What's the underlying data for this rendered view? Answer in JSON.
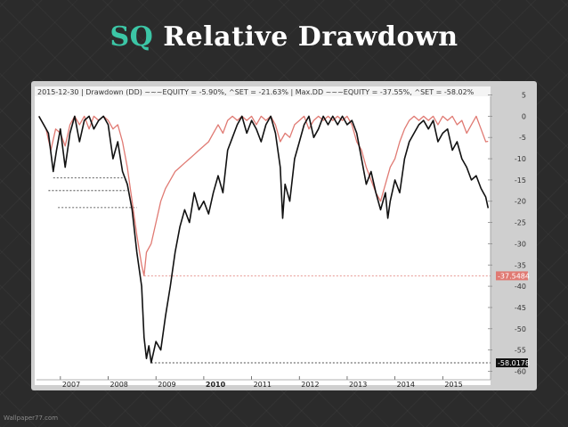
{
  "slide": {
    "title_ticker": "SQ",
    "title_rest": "Relative Drawdown",
    "title_color": "#3cc6a6",
    "watermark": "Wallpaper77.com"
  },
  "chart_data": {
    "type": "line",
    "header": "2015-12-30  |  Drawdown (DD) ~~~EQUITY = -5.90%, ^SET = -21.63%  |  Max.DD ~~~EQUITY = -37.55%, ^SET = -58.02%",
    "x_tick_labels": [
      "2007",
      "2008",
      "2009",
      "2010",
      "2011",
      "2012",
      "2013",
      "2014",
      "2015"
    ],
    "bold_tick": "2010",
    "ylim": [
      -62,
      7
    ],
    "y_ticks": [
      5,
      0,
      -5,
      -10,
      -15,
      -20,
      -25,
      -30,
      -35,
      -40,
      -45,
      -50,
      -55,
      -60
    ],
    "series": [
      {
        "key": "set",
        "color": "#111111",
        "points": [
          [
            2006.55,
            0
          ],
          [
            2006.65,
            -2
          ],
          [
            2006.75,
            -4
          ],
          [
            2006.85,
            -13
          ],
          [
            2006.92,
            -8
          ],
          [
            2007.0,
            -3
          ],
          [
            2007.1,
            -12
          ],
          [
            2007.2,
            -4
          ],
          [
            2007.3,
            0
          ],
          [
            2007.4,
            -6
          ],
          [
            2007.5,
            -1
          ],
          [
            2007.6,
            0
          ],
          [
            2007.7,
            -3
          ],
          [
            2007.8,
            -1
          ],
          [
            2007.9,
            0
          ],
          [
            2008.0,
            -2
          ],
          [
            2008.1,
            -10
          ],
          [
            2008.2,
            -6
          ],
          [
            2008.3,
            -13
          ],
          [
            2008.4,
            -16
          ],
          [
            2008.5,
            -22
          ],
          [
            2008.6,
            -32
          ],
          [
            2008.7,
            -40
          ],
          [
            2008.75,
            -52
          ],
          [
            2008.8,
            -57
          ],
          [
            2008.85,
            -54
          ],
          [
            2008.9,
            -58
          ],
          [
            2009.0,
            -53
          ],
          [
            2009.1,
            -55
          ],
          [
            2009.2,
            -47
          ],
          [
            2009.3,
            -40
          ],
          [
            2009.4,
            -32
          ],
          [
            2009.5,
            -26
          ],
          [
            2009.6,
            -22
          ],
          [
            2009.7,
            -25
          ],
          [
            2009.8,
            -18
          ],
          [
            2009.9,
            -22
          ],
          [
            2010.0,
            -20
          ],
          [
            2010.1,
            -23
          ],
          [
            2010.2,
            -18
          ],
          [
            2010.3,
            -14
          ],
          [
            2010.4,
            -18
          ],
          [
            2010.5,
            -8
          ],
          [
            2010.6,
            -5
          ],
          [
            2010.7,
            -2
          ],
          [
            2010.8,
            0
          ],
          [
            2010.9,
            -4
          ],
          [
            2011.0,
            -1
          ],
          [
            2011.1,
            -3
          ],
          [
            2011.2,
            -6
          ],
          [
            2011.3,
            -2
          ],
          [
            2011.4,
            0
          ],
          [
            2011.5,
            -4
          ],
          [
            2011.6,
            -12
          ],
          [
            2011.65,
            -24
          ],
          [
            2011.7,
            -16
          ],
          [
            2011.8,
            -20
          ],
          [
            2011.9,
            -10
          ],
          [
            2012.0,
            -6
          ],
          [
            2012.1,
            -2
          ],
          [
            2012.2,
            0
          ],
          [
            2012.3,
            -5
          ],
          [
            2012.4,
            -3
          ],
          [
            2012.5,
            0
          ],
          [
            2012.6,
            -2
          ],
          [
            2012.7,
            0
          ],
          [
            2012.8,
            -2
          ],
          [
            2012.9,
            0
          ],
          [
            2013.0,
            -2
          ],
          [
            2013.1,
            -1
          ],
          [
            2013.2,
            -4
          ],
          [
            2013.3,
            -10
          ],
          [
            2013.4,
            -16
          ],
          [
            2013.5,
            -13
          ],
          [
            2013.6,
            -18
          ],
          [
            2013.7,
            -22
          ],
          [
            2013.8,
            -18
          ],
          [
            2013.85,
            -24
          ],
          [
            2013.9,
            -20
          ],
          [
            2014.0,
            -15
          ],
          [
            2014.1,
            -18
          ],
          [
            2014.2,
            -10
          ],
          [
            2014.3,
            -6
          ],
          [
            2014.4,
            -4
          ],
          [
            2014.5,
            -2
          ],
          [
            2014.6,
            -1
          ],
          [
            2014.7,
            -3
          ],
          [
            2014.8,
            -1
          ],
          [
            2014.9,
            -6
          ],
          [
            2015.0,
            -4
          ],
          [
            2015.1,
            -3
          ],
          [
            2015.2,
            -8
          ],
          [
            2015.3,
            -6
          ],
          [
            2015.4,
            -10
          ],
          [
            2015.5,
            -12
          ],
          [
            2015.6,
            -15
          ],
          [
            2015.7,
            -14
          ],
          [
            2015.8,
            -17
          ],
          [
            2015.9,
            -19
          ],
          [
            2015.95,
            -21.6
          ]
        ]
      },
      {
        "key": "equity",
        "color": "#e07a73",
        "points": [
          [
            2006.55,
            0
          ],
          [
            2006.7,
            -3
          ],
          [
            2006.8,
            -8
          ],
          [
            2006.9,
            -3
          ],
          [
            2007.0,
            -4
          ],
          [
            2007.1,
            -7
          ],
          [
            2007.2,
            -2
          ],
          [
            2007.3,
            0
          ],
          [
            2007.4,
            -2
          ],
          [
            2007.5,
            0
          ],
          [
            2007.6,
            -3
          ],
          [
            2007.7,
            0
          ],
          [
            2007.8,
            -1
          ],
          [
            2007.9,
            0
          ],
          [
            2008.0,
            -1
          ],
          [
            2008.1,
            -3
          ],
          [
            2008.2,
            -2
          ],
          [
            2008.3,
            -6
          ],
          [
            2008.4,
            -12
          ],
          [
            2008.5,
            -20
          ],
          [
            2008.6,
            -28
          ],
          [
            2008.7,
            -35
          ],
          [
            2008.75,
            -37.5
          ],
          [
            2008.8,
            -32
          ],
          [
            2008.9,
            -30
          ],
          [
            2009.0,
            -25
          ],
          [
            2009.1,
            -20
          ],
          [
            2009.2,
            -17
          ],
          [
            2009.3,
            -15
          ],
          [
            2009.4,
            -13
          ],
          [
            2009.5,
            -12
          ],
          [
            2009.6,
            -11
          ],
          [
            2009.7,
            -10
          ],
          [
            2009.8,
            -9
          ],
          [
            2009.9,
            -8
          ],
          [
            2010.0,
            -7
          ],
          [
            2010.1,
            -6
          ],
          [
            2010.2,
            -4
          ],
          [
            2010.3,
            -2
          ],
          [
            2010.4,
            -4
          ],
          [
            2010.5,
            -1
          ],
          [
            2010.6,
            0
          ],
          [
            2010.7,
            -1
          ],
          [
            2010.8,
            0
          ],
          [
            2010.9,
            -1
          ],
          [
            2011.0,
            0
          ],
          [
            2011.1,
            -2
          ],
          [
            2011.2,
            0
          ],
          [
            2011.3,
            -1
          ],
          [
            2011.4,
            0
          ],
          [
            2011.5,
            -2
          ],
          [
            2011.6,
            -6
          ],
          [
            2011.7,
            -4
          ],
          [
            2011.8,
            -5
          ],
          [
            2011.9,
            -2
          ],
          [
            2012.0,
            -1
          ],
          [
            2012.1,
            0
          ],
          [
            2012.2,
            -3
          ],
          [
            2012.3,
            -1
          ],
          [
            2012.4,
            0
          ],
          [
            2012.5,
            -1
          ],
          [
            2012.6,
            0
          ],
          [
            2012.7,
            -1
          ],
          [
            2012.8,
            0
          ],
          [
            2012.9,
            -1
          ],
          [
            2013.0,
            0
          ],
          [
            2013.1,
            -2
          ],
          [
            2013.2,
            -6
          ],
          [
            2013.3,
            -8
          ],
          [
            2013.4,
            -12
          ],
          [
            2013.5,
            -15
          ],
          [
            2013.6,
            -18
          ],
          [
            2013.7,
            -20
          ],
          [
            2013.8,
            -16
          ],
          [
            2013.9,
            -12
          ],
          [
            2014.0,
            -10
          ],
          [
            2014.1,
            -6
          ],
          [
            2014.2,
            -3
          ],
          [
            2014.3,
            -1
          ],
          [
            2014.4,
            0
          ],
          [
            2014.5,
            -1
          ],
          [
            2014.6,
            0
          ],
          [
            2014.7,
            -1
          ],
          [
            2014.8,
            0
          ],
          [
            2014.9,
            -2
          ],
          [
            2015.0,
            0
          ],
          [
            2015.1,
            -1
          ],
          [
            2015.2,
            0
          ],
          [
            2015.3,
            -2
          ],
          [
            2015.4,
            -1
          ],
          [
            2015.5,
            -4
          ],
          [
            2015.6,
            -2
          ],
          [
            2015.7,
            0
          ],
          [
            2015.8,
            -3
          ],
          [
            2015.9,
            -6
          ],
          [
            2015.95,
            -5.9
          ]
        ]
      }
    ],
    "reference_lines": [
      {
        "value": -37.5484,
        "label": "-37.5484",
        "color": "#e07a73",
        "from_x": 2008.75
      },
      {
        "value": -58.0178,
        "label": "-58.0178",
        "color": "#111111",
        "from_x": 2008.9
      },
      {
        "value": -14.5,
        "color": "#333333",
        "from_x": 2006.85,
        "to_x": 2008.3
      },
      {
        "value": -17.5,
        "color": "#333333",
        "from_x": 2006.75,
        "to_x": 2008.4
      },
      {
        "value": -21.5,
        "color": "#333333",
        "from_x": 2006.95,
        "to_x": 2008.6
      }
    ]
  }
}
